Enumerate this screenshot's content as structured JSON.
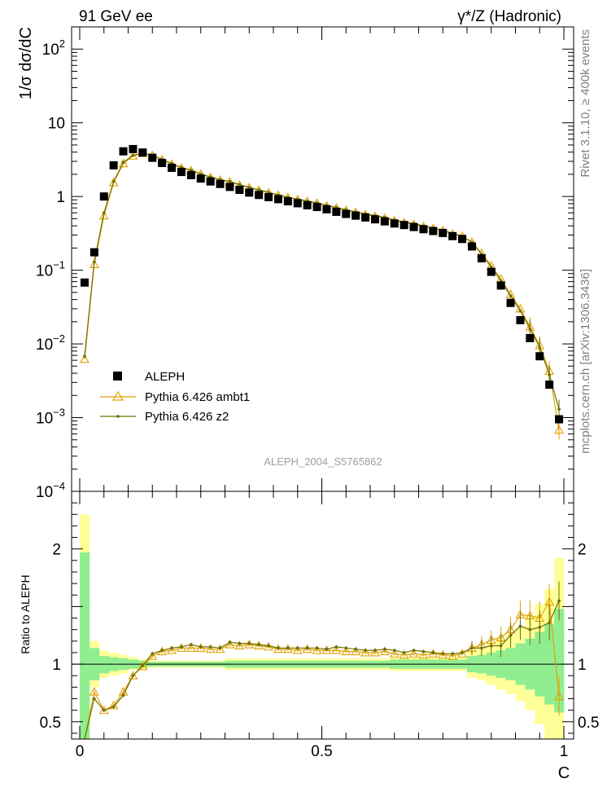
{
  "header": {
    "left": "91 GeV ee",
    "right": "γ*/Z (Hadronic)"
  },
  "side_labels": {
    "top": "Rivet 3.1.10, ≥ 400k events",
    "bottom": "mcplots.cern.ch [arXiv:1306.3436]"
  },
  "colors": {
    "data": "#000000",
    "ambt1": "#e0a000",
    "z2": "#707000",
    "band_inner": "#90ee90",
    "band_outer": "#ffff99"
  },
  "chart_data": [
    {
      "type": "scatter",
      "title": "",
      "analysis_label": "ALEPH_2004_S5765862",
      "xlabel": "C",
      "ylabel": "1/σ dσ/dC",
      "xlim": [
        0,
        1
      ],
      "ylim": [
        0.0001,
        200
      ],
      "yscale": "log",
      "y_ticks": [
        {
          "v": 0.0001,
          "base": "10",
          "exp": "−4"
        },
        {
          "v": 0.001,
          "base": "10",
          "exp": "−3"
        },
        {
          "v": 0.01,
          "base": "10",
          "exp": "−2"
        },
        {
          "v": 0.1,
          "base": "10",
          "exp": "−1"
        },
        {
          "v": 1,
          "base": "1",
          "exp": ""
        },
        {
          "v": 10,
          "base": "10",
          "exp": ""
        },
        {
          "v": 100,
          "base": "10",
          "exp": "2"
        }
      ],
      "legend_position": "lower-left",
      "x": [
        0.01,
        0.03,
        0.05,
        0.07,
        0.09,
        0.11,
        0.13,
        0.15,
        0.17,
        0.19,
        0.21,
        0.23,
        0.25,
        0.27,
        0.29,
        0.31,
        0.33,
        0.35,
        0.37,
        0.39,
        0.41,
        0.43,
        0.45,
        0.47,
        0.49,
        0.51,
        0.53,
        0.55,
        0.57,
        0.59,
        0.61,
        0.63,
        0.65,
        0.67,
        0.69,
        0.71,
        0.73,
        0.75,
        0.77,
        0.79,
        0.81,
        0.83,
        0.85,
        0.87,
        0.89,
        0.91,
        0.93,
        0.95,
        0.97,
        0.99
      ],
      "series": [
        {
          "name": "ALEPH",
          "marker": "square",
          "values": [
            0.068,
            0.175,
            1.0,
            2.65,
            4.1,
            4.4,
            3.95,
            3.35,
            2.85,
            2.45,
            2.15,
            1.95,
            1.75,
            1.6,
            1.48,
            1.35,
            1.23,
            1.13,
            1.05,
            0.98,
            0.92,
            0.86,
            0.81,
            0.76,
            0.72,
            0.67,
            0.62,
            0.58,
            0.55,
            0.52,
            0.49,
            0.46,
            0.43,
            0.41,
            0.385,
            0.36,
            0.34,
            0.32,
            0.29,
            0.265,
            0.21,
            0.145,
            0.095,
            0.062,
            0.036,
            0.021,
            0.012,
            0.0068,
            0.0028,
            0.00095
          ]
        },
        {
          "name": "Pythia 6.426 ambt1",
          "marker": "triangle",
          "values": [
            0.0062,
            0.12,
            0.55,
            1.55,
            2.8,
            3.55,
            3.85,
            3.6,
            3.15,
            2.75,
            2.45,
            2.25,
            2.0,
            1.82,
            1.67,
            1.58,
            1.43,
            1.32,
            1.22,
            1.13,
            1.04,
            0.97,
            0.91,
            0.86,
            0.81,
            0.75,
            0.7,
            0.65,
            0.61,
            0.57,
            0.54,
            0.51,
            0.47,
            0.44,
            0.42,
            0.39,
            0.37,
            0.345,
            0.31,
            0.29,
            0.24,
            0.17,
            0.115,
            0.076,
            0.047,
            0.03,
            0.017,
            0.0095,
            0.0043,
            0.00068
          ]
        },
        {
          "name": "Pythia 6.426 z2",
          "marker": "dot",
          "values": [
            0.0068,
            0.13,
            0.6,
            1.6,
            2.9,
            3.6,
            3.9,
            3.65,
            3.2,
            2.8,
            2.48,
            2.28,
            2.02,
            1.84,
            1.69,
            1.6,
            1.45,
            1.33,
            1.23,
            1.14,
            1.05,
            0.98,
            0.92,
            0.87,
            0.82,
            0.76,
            0.71,
            0.66,
            0.62,
            0.58,
            0.55,
            0.52,
            0.48,
            0.45,
            0.43,
            0.4,
            0.375,
            0.35,
            0.315,
            0.29,
            0.24,
            0.165,
            0.11,
            0.072,
            0.045,
            0.028,
            0.016,
            0.009,
            0.0038,
            0.0013
          ]
        }
      ]
    },
    {
      "type": "line",
      "title": "",
      "xlabel": "C",
      "ylabel": "Ratio to ALEPH",
      "xlim": [
        0,
        1
      ],
      "ylim": [
        0.35,
        2.5
      ],
      "x_ticks": [
        {
          "v": 0,
          "label": "0"
        },
        {
          "v": 0.5,
          "label": "0.5"
        },
        {
          "v": 1,
          "label": "1"
        }
      ],
      "y_ticks": [
        {
          "v": 0.5,
          "label": "0.5"
        },
        {
          "v": 1,
          "label": "1"
        },
        {
          "v": 2,
          "label": "2"
        }
      ],
      "x": [
        0.01,
        0.03,
        0.05,
        0.07,
        0.09,
        0.11,
        0.13,
        0.15,
        0.17,
        0.19,
        0.21,
        0.23,
        0.25,
        0.27,
        0.29,
        0.31,
        0.33,
        0.35,
        0.37,
        0.39,
        0.41,
        0.43,
        0.45,
        0.47,
        0.49,
        0.51,
        0.53,
        0.55,
        0.57,
        0.59,
        0.61,
        0.63,
        0.65,
        0.67,
        0.69,
        0.71,
        0.73,
        0.75,
        0.77,
        0.79,
        0.81,
        0.83,
        0.85,
        0.87,
        0.89,
        0.91,
        0.93,
        0.95,
        0.97,
        0.99
      ],
      "bands": {
        "inner_lo": [
          0.3,
          0.86,
          0.92,
          0.94,
          0.95,
          0.96,
          0.97,
          0.98,
          0.98,
          0.98,
          0.98,
          0.98,
          0.98,
          0.98,
          0.98,
          0.97,
          0.97,
          0.97,
          0.97,
          0.97,
          0.97,
          0.97,
          0.97,
          0.97,
          0.97,
          0.97,
          0.97,
          0.97,
          0.97,
          0.97,
          0.97,
          0.97,
          0.96,
          0.96,
          0.96,
          0.96,
          0.96,
          0.96,
          0.96,
          0.96,
          0.93,
          0.92,
          0.9,
          0.88,
          0.86,
          0.82,
          0.78,
          0.72,
          0.65,
          0.58
        ],
        "inner_hi": [
          1.97,
          1.14,
          1.07,
          1.06,
          1.05,
          1.04,
          1.03,
          1.02,
          1.02,
          1.02,
          1.02,
          1.02,
          1.02,
          1.02,
          1.02,
          1.03,
          1.03,
          1.03,
          1.03,
          1.03,
          1.03,
          1.03,
          1.03,
          1.03,
          1.03,
          1.03,
          1.03,
          1.03,
          1.03,
          1.03,
          1.03,
          1.03,
          1.04,
          1.04,
          1.04,
          1.04,
          1.04,
          1.04,
          1.04,
          1.04,
          1.07,
          1.08,
          1.1,
          1.12,
          1.14,
          1.18,
          1.22,
          1.28,
          1.35,
          1.48
        ],
        "outer_lo": [
          0.2,
          0.8,
          0.88,
          0.9,
          0.92,
          0.95,
          0.96,
          0.97,
          0.97,
          0.97,
          0.97,
          0.97,
          0.97,
          0.97,
          0.97,
          0.95,
          0.95,
          0.95,
          0.95,
          0.95,
          0.95,
          0.95,
          0.95,
          0.95,
          0.95,
          0.95,
          0.95,
          0.95,
          0.95,
          0.95,
          0.95,
          0.95,
          0.94,
          0.94,
          0.94,
          0.94,
          0.94,
          0.94,
          0.94,
          0.94,
          0.88,
          0.86,
          0.82,
          0.78,
          0.74,
          0.68,
          0.6,
          0.48,
          0.35,
          0.3
        ],
        "outer_hi": [
          2.3,
          1.2,
          1.12,
          1.1,
          1.08,
          1.06,
          1.04,
          1.03,
          1.03,
          1.03,
          1.03,
          1.03,
          1.03,
          1.03,
          1.03,
          1.05,
          1.05,
          1.05,
          1.05,
          1.05,
          1.05,
          1.05,
          1.05,
          1.05,
          1.05,
          1.05,
          1.05,
          1.05,
          1.05,
          1.05,
          1.05,
          1.05,
          1.06,
          1.06,
          1.06,
          1.06,
          1.06,
          1.06,
          1.06,
          1.06,
          1.12,
          1.14,
          1.18,
          1.22,
          1.26,
          1.32,
          1.42,
          1.52,
          1.65,
          1.92
        ]
      },
      "series": [
        {
          "name": "Pythia 6.426 ambt1",
          "values": [
            0.09,
            0.76,
            0.6,
            0.64,
            0.76,
            0.9,
            0.98,
            1.07,
            1.11,
            1.12,
            1.14,
            1.14,
            1.14,
            1.13,
            1.13,
            1.17,
            1.16,
            1.17,
            1.16,
            1.15,
            1.13,
            1.13,
            1.12,
            1.13,
            1.12,
            1.12,
            1.12,
            1.11,
            1.11,
            1.1,
            1.1,
            1.11,
            1.09,
            1.08,
            1.09,
            1.08,
            1.09,
            1.08,
            1.07,
            1.09,
            1.14,
            1.17,
            1.21,
            1.23,
            1.3,
            1.43,
            1.42,
            1.4,
            1.54,
            0.72
          ]
        },
        {
          "name": "Pythia 6.426 z2",
          "values": [
            0.1,
            0.7,
            0.6,
            0.63,
            0.73,
            0.9,
            0.99,
            1.09,
            1.12,
            1.14,
            1.15,
            1.17,
            1.15,
            1.15,
            1.14,
            1.19,
            1.18,
            1.18,
            1.17,
            1.16,
            1.14,
            1.14,
            1.14,
            1.14,
            1.14,
            1.13,
            1.15,
            1.14,
            1.13,
            1.12,
            1.12,
            1.13,
            1.12,
            1.1,
            1.12,
            1.11,
            1.1,
            1.09,
            1.09,
            1.1,
            1.14,
            1.14,
            1.16,
            1.16,
            1.25,
            1.33,
            1.3,
            1.32,
            1.36,
            1.55
          ]
        }
      ]
    }
  ]
}
